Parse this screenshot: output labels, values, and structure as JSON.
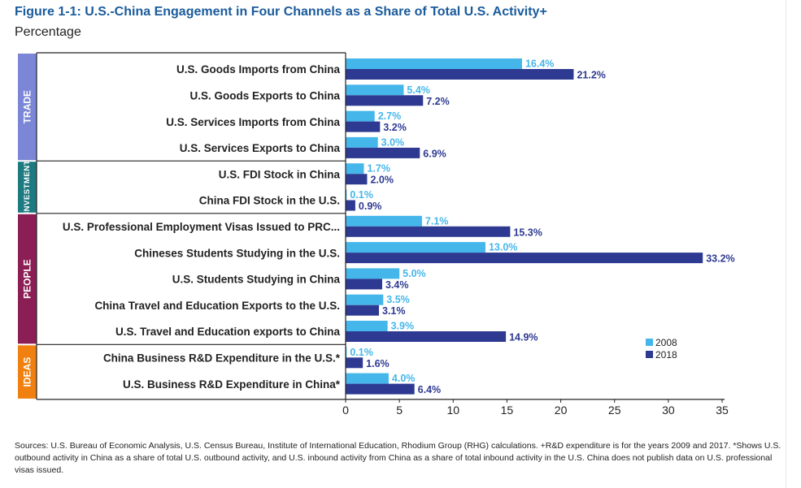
{
  "title": "Figure 1-1: U.S.-China Engagement in Four Channels as a Share of Total U.S. Activity+",
  "subtitle": "Percentage",
  "sources": "Sources: U.S. Bureau of Economic Analysis, U.S. Census Bureau, Institute of International Education, Rhodium Group (RHG) calculations. +R&D expenditure is for the years 2009 and 2017. *Shows U.S. outbound activity in China as a share of total U.S. outbound activity, and U.S. inbound activity from China as a share of total inbound activity in the U.S. China does not publish data on U.S. professional visas issued.",
  "colors": {
    "s2008": "#45b6ea",
    "s2018": "#2e3a92",
    "trade": "#7b86d6",
    "investment": "#1d7a80",
    "people": "#8b1f55",
    "ideas": "#f0800f"
  },
  "chart_data": {
    "type": "bar",
    "orientation": "horizontal",
    "xlim": [
      0,
      35
    ],
    "xticks": [
      "0",
      "5",
      "10",
      "15",
      "20",
      "25",
      "30",
      "35"
    ],
    "legend_placement": "bottom-right",
    "groups": [
      {
        "name": "TRADE",
        "color": "#7b86d6",
        "categories": [
          {
            "label": "U.S. Goods Imports from China",
            "v2008": 16.4,
            "v2018": 21.2,
            "l2008": "16.4%",
            "l2018": "21.2%"
          },
          {
            "label": "U.S. Goods Exports to China",
            "v2008": 5.4,
            "v2018": 7.2,
            "l2008": "5.4%",
            "l2018": "7.2%"
          },
          {
            "label": "U.S. Services Imports from China",
            "v2008": 2.7,
            "v2018": 3.2,
            "l2008": "2.7%",
            "l2018": "3.2%"
          },
          {
            "label": "U.S. Services Exports to China",
            "v2008": 3.0,
            "v2018": 6.9,
            "l2008": "3.0%",
            "l2018": "6.9%"
          }
        ]
      },
      {
        "name": "INVESTMENT",
        "color": "#1d7a80",
        "categories": [
          {
            "label": "U.S. FDI Stock in China",
            "v2008": 1.7,
            "v2018": 2.0,
            "l2008": "1.7%",
            "l2018": "2.0%"
          },
          {
            "label": "China FDI Stock in the U.S.",
            "v2008": 0.1,
            "v2018": 0.9,
            "l2008": "0.1%",
            "l2018": "0.9%"
          }
        ]
      },
      {
        "name": "PEOPLE",
        "color": "#8b1f55",
        "categories": [
          {
            "label": "U.S. Professional Employment Visas Issued to PRC...",
            "v2008": 7.1,
            "v2018": 15.3,
            "l2008": "7.1%",
            "l2018": "15.3%"
          },
          {
            "label": "Chineses Students Studying in the U.S.",
            "v2008": 13.0,
            "v2018": 33.2,
            "l2008": "13.0%",
            "l2018": "33.2%"
          },
          {
            "label": "U.S. Students Studying in China",
            "v2008": 5.0,
            "v2018": 3.4,
            "l2008": "5.0%",
            "l2018": "3.4%"
          },
          {
            "label": "China Travel and Education Exports to the U.S.",
            "v2008": 3.5,
            "v2018": 3.1,
            "l2008": "3.5%",
            "l2018": "3.1%"
          },
          {
            "label": "U.S. Travel and Education exports to China",
            "v2008": 3.9,
            "v2018": 14.9,
            "l2008": "3.9%",
            "l2018": "14.9%"
          }
        ]
      },
      {
        "name": "IDEAS",
        "color": "#f0800f",
        "categories": [
          {
            "label": "China Business R&D Expenditure in the U.S.*",
            "v2008": 0.1,
            "v2018": 1.6,
            "l2008": "0.1%",
            "l2018": "1.6%"
          },
          {
            "label": "U.S. Business R&D Expenditure in China*",
            "v2008": 4.0,
            "v2018": 6.4,
            "l2008": "4.0%",
            "l2018": "6.4%"
          }
        ]
      }
    ],
    "series": [
      {
        "name": "2008",
        "color": "#45b6ea"
      },
      {
        "name": "2018",
        "color": "#2e3a92"
      }
    ]
  }
}
